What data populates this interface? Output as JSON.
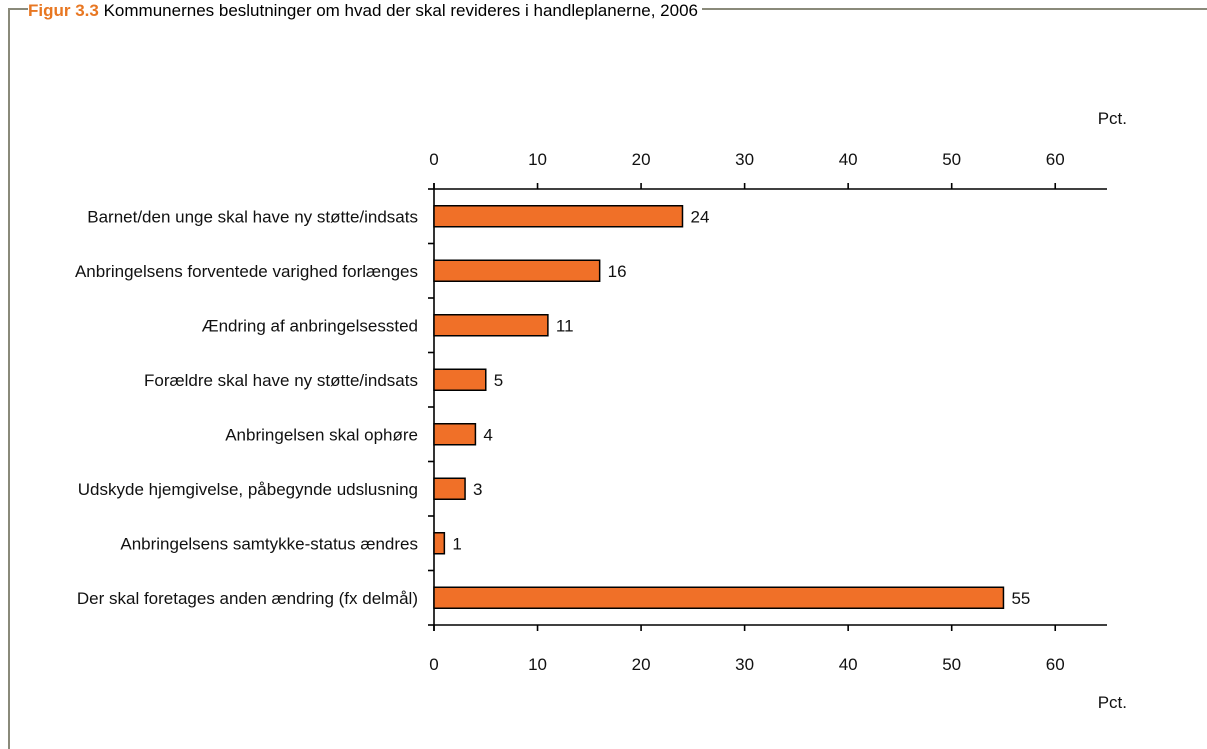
{
  "caption": {
    "figure_label": "Figur 3.3",
    "text": "Kommunernes beslutninger om hvad der skal revideres i handleplanerne, 2006"
  },
  "colors": {
    "bar": "#f07028",
    "bar_stroke": "#000000",
    "frame": "#8a8a7a",
    "caption_label": "#e87722"
  },
  "chart_data": {
    "type": "bar",
    "orientation": "horizontal",
    "title": "",
    "xlabel": "Pct.",
    "ylabel": "",
    "xlim": [
      0,
      65
    ],
    "x_ticks": [
      0,
      10,
      20,
      30,
      40,
      50,
      60
    ],
    "categories": [
      "Barnet/den unge skal have ny støtte/indsats",
      "Anbringelsens forventede varighed forlænges",
      "Ændring af anbringelsessted",
      "Forældre skal have ny støtte/indsats",
      "Anbringelsen skal ophøre",
      "Udskyde hjemgivelse, påbegynde udslusning",
      "Anbringelsens samtykke-status ændres",
      "Der skal foretages anden ændring (fx delmål)"
    ],
    "values": [
      24,
      16,
      11,
      5,
      4,
      3,
      1,
      55
    ],
    "data_labels": true,
    "axes": "top-and-bottom",
    "grid": false,
    "legend": "none"
  }
}
